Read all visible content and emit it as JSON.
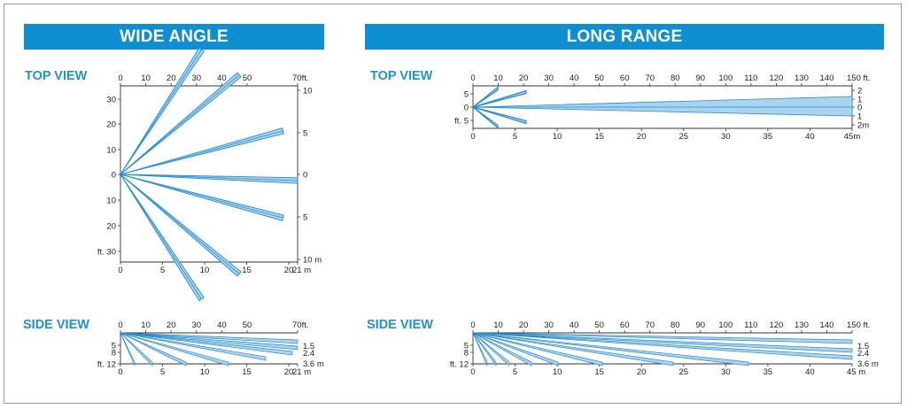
{
  "sections": {
    "wide": {
      "title": "WIDE ANGLE"
    },
    "long": {
      "title": "LONG RANGE"
    }
  },
  "labels": {
    "top_view": "TOP VIEW",
    "side_view": "SIDE VIEW"
  },
  "colors": {
    "banner": "#0e8fd1",
    "label": "#1e93d2",
    "beam_fill": "#a9d3ef",
    "beam_line": "#2a8dd0",
    "axis": "#333333"
  },
  "wide_top": {
    "top_ticks": [
      "0",
      "10",
      "20",
      "30",
      "40",
      "50",
      "70ft."
    ],
    "bottom_ticks": [
      "0",
      "5",
      "10",
      "15",
      "20",
      "21 m"
    ],
    "left_ticks": [
      "30",
      "20",
      "10",
      "0",
      "10",
      "20",
      "ft. 30"
    ],
    "right_ticks": [
      "10",
      "5",
      "0",
      "5",
      "10 m"
    ],
    "beam_angles_deg": [
      57,
      40,
      15,
      -2,
      -15,
      -40,
      -57
    ],
    "beam_length_ft": 70
  },
  "wide_side": {
    "top_ticks": [
      "0",
      "10",
      "20",
      "30",
      "40",
      "50",
      "70ft."
    ],
    "bottom_ticks": [
      "0",
      "5",
      "10",
      "15",
      "20",
      "21 m"
    ],
    "left_ticks": [
      "5",
      "8",
      "ft. 12"
    ],
    "right_ticks": [
      "1.5",
      "2.4",
      "3.6 m"
    ]
  },
  "long_top": {
    "top_ticks": [
      "0",
      "10",
      "20",
      "30",
      "40",
      "50",
      "60",
      "70",
      "80",
      "90",
      "100",
      "110",
      "120",
      "130",
      "140",
      "150 ft."
    ],
    "bottom_ticks": [
      "0",
      "5",
      "10",
      "15",
      "20",
      "25",
      "30",
      "35",
      "40",
      "45m"
    ],
    "left_ticks": [
      "5",
      "0",
      "ft. 5"
    ],
    "right_ticks": [
      "2",
      "1",
      "0",
      "1",
      "2m"
    ]
  },
  "long_side": {
    "top_ticks": [
      "0",
      "10",
      "20",
      "30",
      "40",
      "50",
      "60",
      "70",
      "80",
      "90",
      "100",
      "110",
      "120",
      "130",
      "140",
      "150 ft."
    ],
    "bottom_ticks": [
      "0",
      "5",
      "10",
      "15",
      "20",
      "25",
      "30",
      "35",
      "40",
      "45 m"
    ],
    "left_ticks": [
      "5",
      "8",
      "ft. 12"
    ],
    "right_ticks": [
      "1.5",
      "2.4",
      "3.6 m"
    ]
  }
}
